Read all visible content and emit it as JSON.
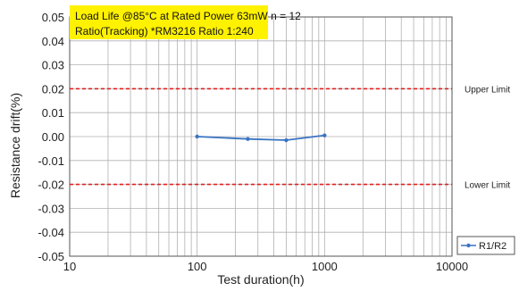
{
  "chart_data": {
    "type": "line",
    "title_lines": [
      "Load Life @85°C at Rated Power 63mW  n = 12",
      "Ratio(Tracking) *RM3216 Ratio 1:240"
    ],
    "xlabel": "Test duration(h)",
    "ylabel": "Resistance drift(%)",
    "x_scale": "log",
    "xlim": [
      10,
      10000
    ],
    "ylim": [
      -0.05,
      0.05
    ],
    "x_ticks": [
      10,
      100,
      1000,
      10000
    ],
    "x_tick_labels": [
      "10",
      "100",
      "1000",
      "10000"
    ],
    "y_ticks": [
      0.05,
      0.04,
      0.03,
      0.02,
      0.01,
      0.0,
      -0.01,
      -0.02,
      -0.03,
      -0.04,
      -0.05
    ],
    "y_tick_labels": [
      "0.05",
      "0.04",
      "0.03",
      "0.02",
      "0.01",
      "0.00",
      "-0.01",
      "-0.02",
      "-0.03",
      "-0.04",
      "-0.05"
    ],
    "grid": true,
    "legend_position": "bottom-right",
    "series": [
      {
        "name": "R1/R2",
        "color": "#3a74c4",
        "x": [
          100,
          250,
          500,
          1000
        ],
        "y": [
          0.0,
          -0.001,
          -0.0015,
          0.0005
        ]
      }
    ],
    "reference_lines": [
      {
        "y": 0.02,
        "label": "Upper Limit",
        "color": "#e02020"
      },
      {
        "y": -0.02,
        "label": "Lower Limit",
        "color": "#e02020"
      }
    ],
    "colors": {
      "title_box": "#fff200",
      "grid": "#b0b0b0",
      "axis": "#555555"
    }
  }
}
